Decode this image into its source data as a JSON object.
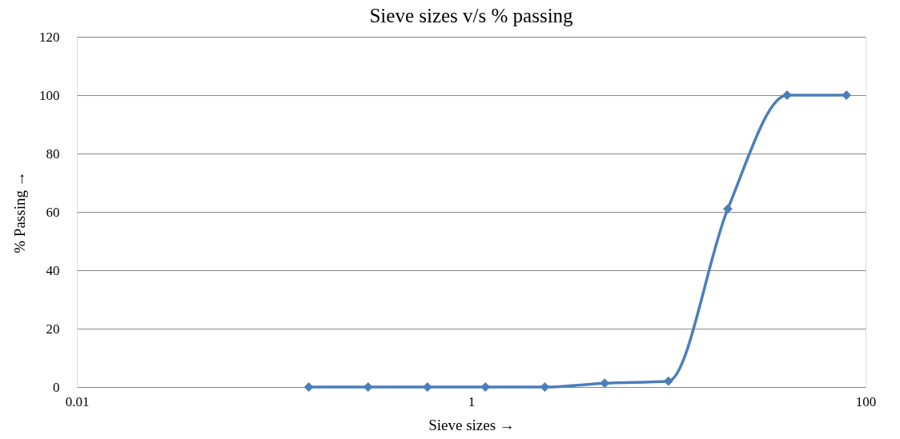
{
  "chart_data": {
    "type": "line",
    "title": "Sieve sizes v/s % passing",
    "xlabel": "Sieve sizes →",
    "ylabel": "% Passing →",
    "x": [
      0.15,
      0.3,
      0.6,
      1.18,
      2.36,
      4.75,
      10,
      20,
      40,
      80
    ],
    "series": [
      {
        "color": "#4a7ebb",
        "values": [
          0,
          0,
          0,
          0,
          0,
          1.3,
          2,
          61,
          100,
          100
        ]
      }
    ],
    "log": "x",
    "xlim": [
      0.01,
      100
    ],
    "xticks": [
      0.01,
      1,
      100
    ],
    "ylim": [
      0,
      120
    ],
    "yticks": [
      0,
      20,
      40,
      60,
      80,
      100,
      120
    ],
    "grid": "y",
    "marker": "diamond",
    "line_style": "solid"
  }
}
